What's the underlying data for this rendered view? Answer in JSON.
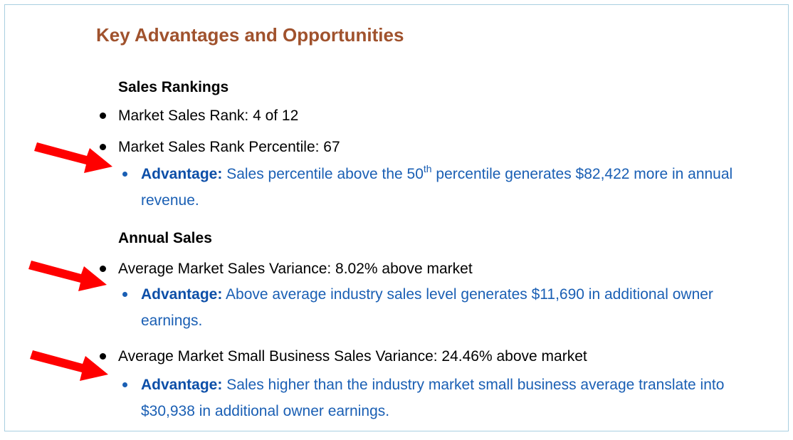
{
  "title": "Key Advantages and Opportunities",
  "colors": {
    "title": "#a0522d",
    "advantage_text": "#1a5fb4",
    "arrow": "#ff0000",
    "border": "#a9cfe0"
  },
  "sections": [
    {
      "heading": "Sales Rankings",
      "bullets": [
        {
          "text": "Market Sales Rank: 4 of 12"
        },
        {
          "text": "Market Sales Rank Percentile: 67",
          "advantage": {
            "label": "Advantage:",
            "text_before": " Sales percentile above the 50",
            "superscript": "th",
            "text_after": " percentile generates $82,422 more in annual revenue."
          },
          "arrow_icon": "red-arrow-icon"
        }
      ]
    },
    {
      "heading": "Annual Sales",
      "bullets": [
        {
          "text": "Average Market Sales Variance: 8.02% above market",
          "advantage": {
            "label": "Advantage:",
            "text": " Above average industry sales level generates $11,690 in additional owner earnings."
          },
          "arrow_icon": "red-arrow-icon"
        },
        {
          "text": "Average Market Small Business Sales Variance: 24.46% above market",
          "advantage": {
            "label": "Advantage:",
            "text": " Sales higher than the industry market small business average translate into $30,938 in additional owner earnings."
          },
          "arrow_icon": "red-arrow-icon"
        }
      ]
    }
  ]
}
